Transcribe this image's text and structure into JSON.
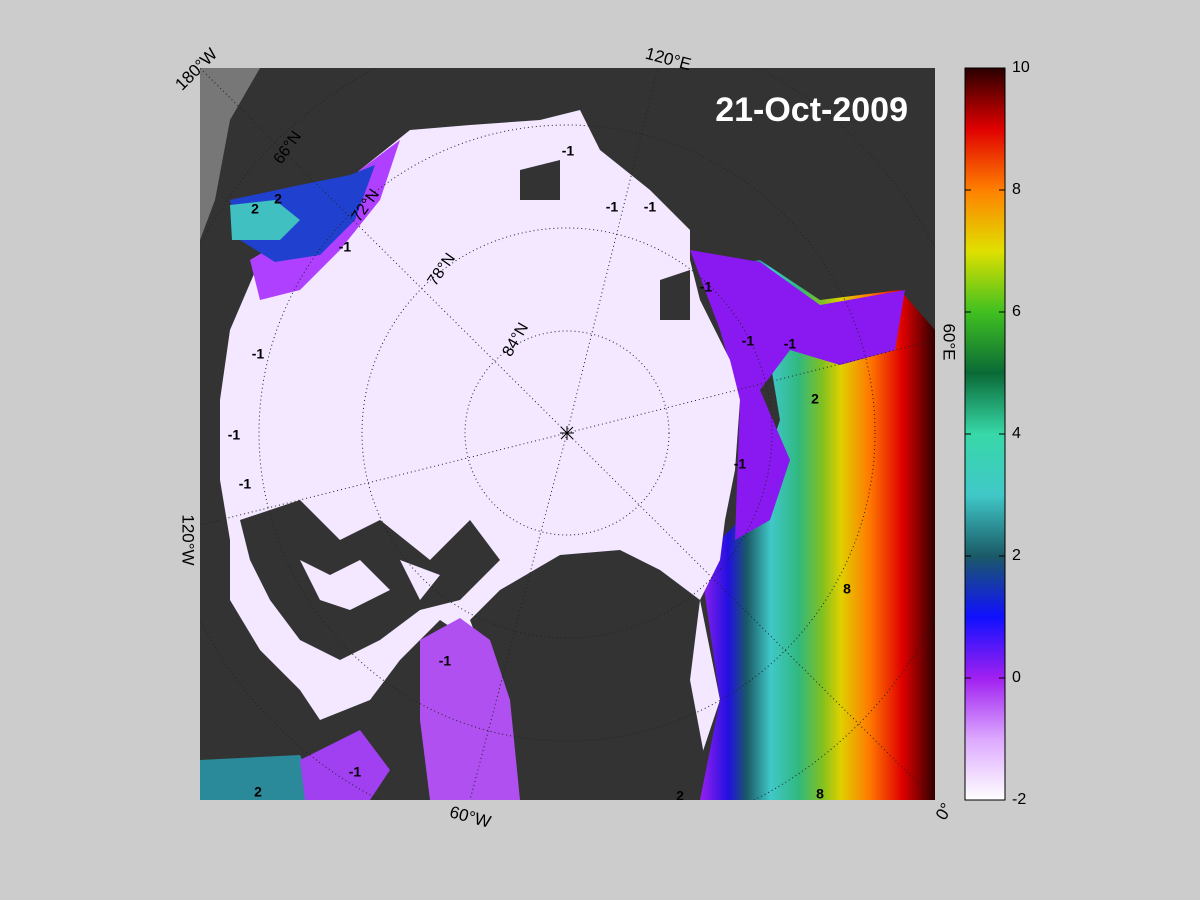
{
  "map": {
    "date": "21-Oct-2009",
    "longitude_labels": [
      "180°W",
      "120°E",
      "60°E",
      "0°",
      "60°W",
      "120°W"
    ],
    "latitude_labels": [
      "66°N",
      "72°N",
      "78°N",
      "84°N"
    ],
    "contour_labels": [
      "-1",
      "-1",
      "-1",
      "2",
      "2",
      "-1",
      "-1",
      "-1",
      "-1",
      "-1",
      "-1",
      "-1",
      "2",
      "-1",
      "8",
      "-1",
      "-1",
      "2",
      "2",
      "8"
    ]
  },
  "colorbar": {
    "range": [
      -2,
      10
    ],
    "ticks": [
      -2,
      0,
      2,
      4,
      6,
      8,
      10
    ],
    "colors": [
      "#ffffff",
      "#dca8ff",
      "#a020f0",
      "#1010ff",
      "#1a5a66",
      "#40c8c8",
      "#38d8a8",
      "#0a6a36",
      "#40c020",
      "#e0e000",
      "#ff8000",
      "#e00000",
      "#2a0000"
    ]
  }
}
